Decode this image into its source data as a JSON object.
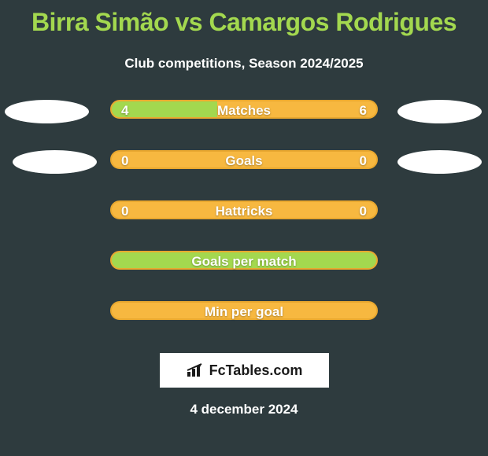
{
  "title": "Birra Simão vs Camargos Rodrigues",
  "subtitle": "Club competitions, Season 2024/2025",
  "footer_brand": "FcTables.com",
  "footer_date": "4 december 2024",
  "colors": {
    "bg": "#2e3b3e",
    "title": "#a3d84f",
    "bar_orange": "#f7b840",
    "bar_orange_border": "#e9a82f",
    "bar_green": "#a3d84f",
    "ellipse": "#ffffff",
    "text": "#ffffff"
  },
  "rows": [
    {
      "label": "Matches",
      "left_value": "4",
      "right_value": "6",
      "left_pct": 40,
      "show_left_ellipse": true,
      "show_right_ellipse": true,
      "left_ellipse_indent": false,
      "right_ellipse_indent": false,
      "full_green": false
    },
    {
      "label": "Goals",
      "left_value": "0",
      "right_value": "0",
      "left_pct": 0,
      "show_left_ellipse": true,
      "show_right_ellipse": true,
      "left_ellipse_indent": true,
      "right_ellipse_indent": true,
      "full_green": false
    },
    {
      "label": "Hattricks",
      "left_value": "0",
      "right_value": "0",
      "left_pct": 0,
      "show_left_ellipse": false,
      "show_right_ellipse": false,
      "full_green": false
    },
    {
      "label": "Goals per match",
      "left_value": "",
      "right_value": "",
      "left_pct": 0,
      "show_left_ellipse": false,
      "show_right_ellipse": false,
      "full_green": true
    },
    {
      "label": "Min per goal",
      "left_value": "",
      "right_value": "",
      "left_pct": 0,
      "show_left_ellipse": false,
      "show_right_ellipse": false,
      "full_green": false
    }
  ]
}
